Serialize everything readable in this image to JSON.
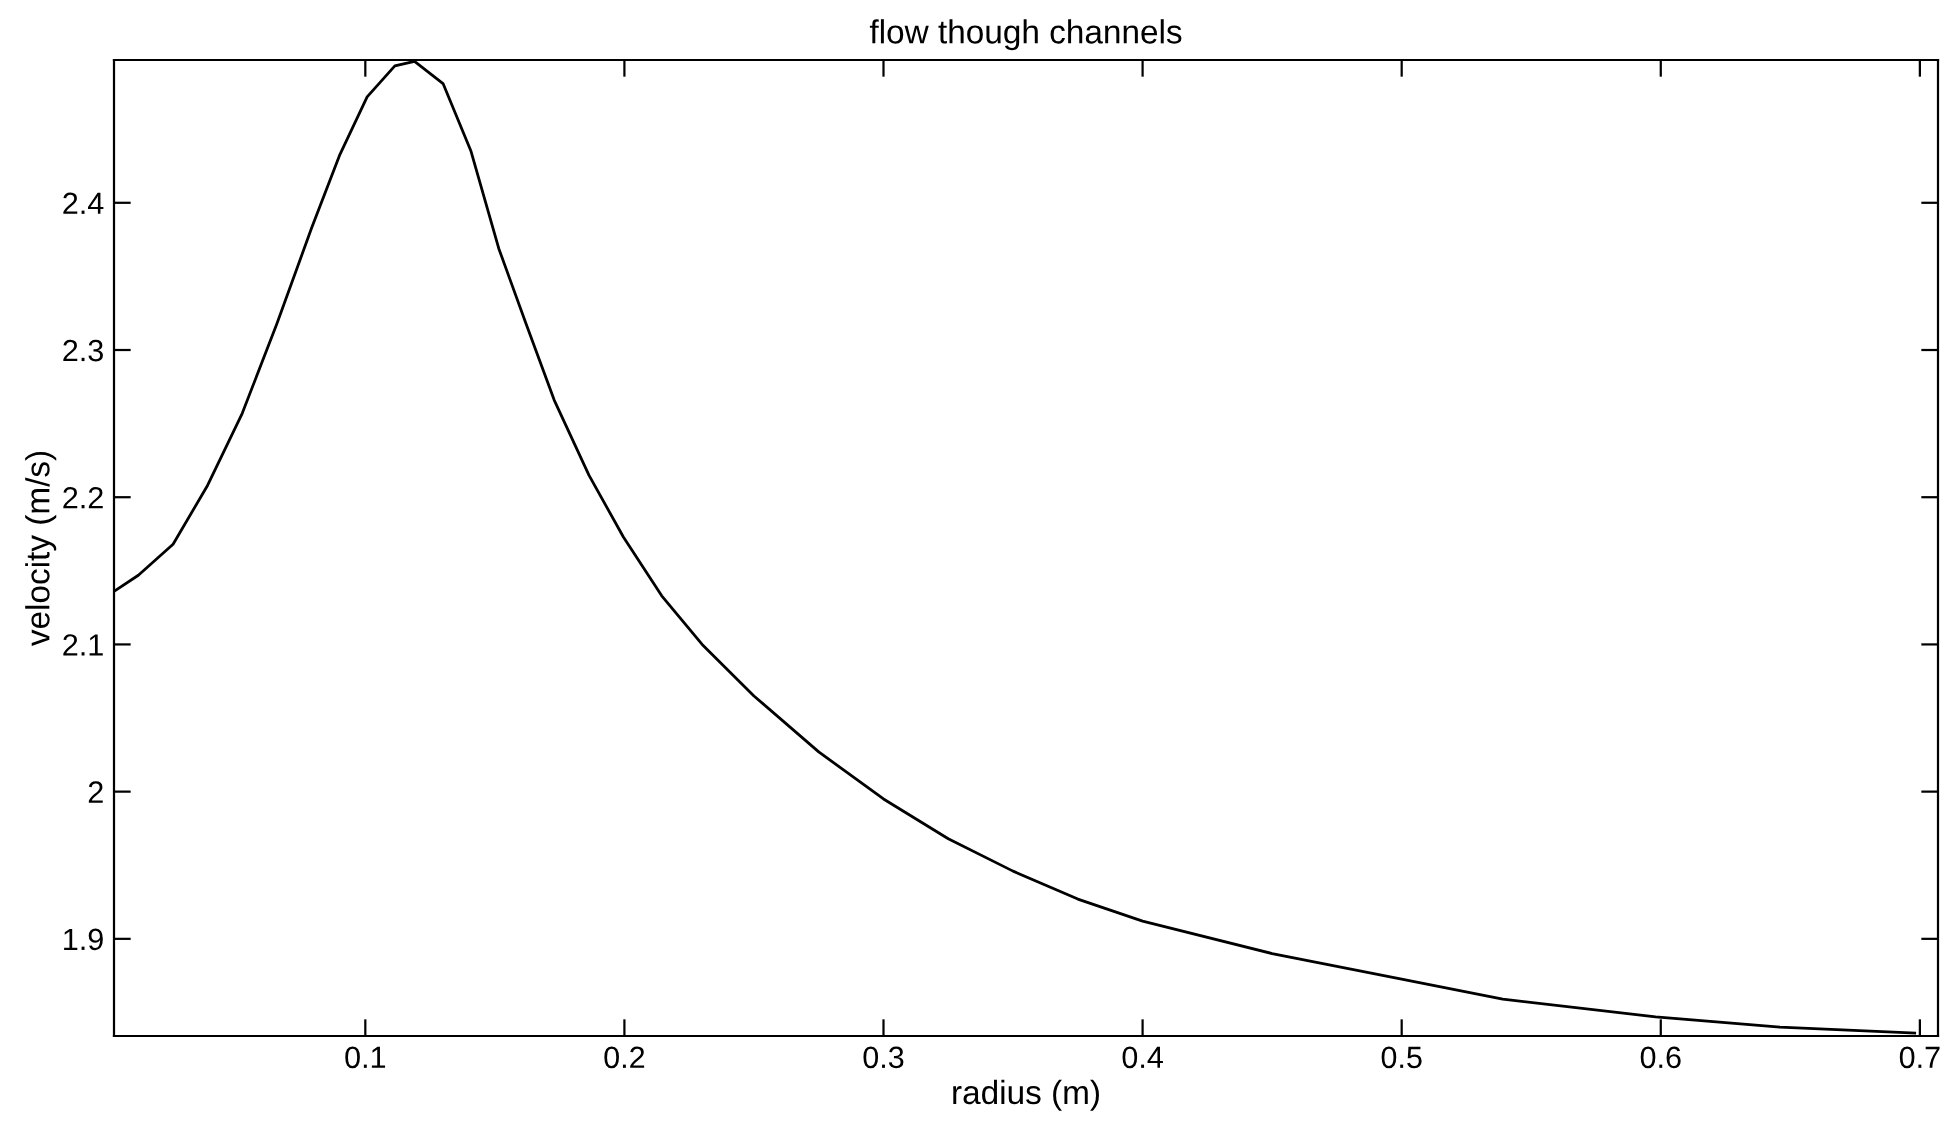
{
  "chart_data": {
    "type": "line",
    "title": "flow though channels",
    "xlabel": "radius (m)",
    "ylabel": "velocity (m/s)",
    "x": [
      0.003,
      0.0124,
      0.0258,
      0.0391,
      0.0525,
      0.0659,
      0.0793,
      0.09,
      0.1007,
      0.1114,
      0.119,
      0.13,
      0.1408,
      0.1515,
      0.162,
      0.1729,
      0.1863,
      0.1996,
      0.2144,
      0.23,
      0.25,
      0.275,
      0.3,
      0.325,
      0.35,
      0.375,
      0.4,
      0.45,
      0.499,
      0.539,
      0.598,
      0.646,
      0.698
    ],
    "series": [
      {
        "color": "#000000",
        "values": [
          2.136,
          2.147,
          2.168,
          2.208,
          2.257,
          2.318,
          2.383,
          2.432,
          2.472,
          2.493,
          2.496,
          2.481,
          2.435,
          2.369,
          2.318,
          2.266,
          2.215,
          2.173,
          2.133,
          2.1,
          2.065,
          2.027,
          1.995,
          1.968,
          1.946,
          1.927,
          1.912,
          1.89,
          1.873,
          1.859,
          1.847,
          1.84,
          1.836
        ]
      }
    ],
    "xlim": [
      0.003,
      0.707
    ],
    "ylim": [
      1.834,
      2.497
    ],
    "xticks": [
      0.1,
      0.2,
      0.3,
      0.4,
      0.5,
      0.6,
      0.7
    ],
    "yticks": [
      1.9,
      2,
      2.1,
      2.2,
      2.3,
      2.4
    ],
    "grid": false,
    "legend": false,
    "marker": "none",
    "line_style": "solid"
  }
}
